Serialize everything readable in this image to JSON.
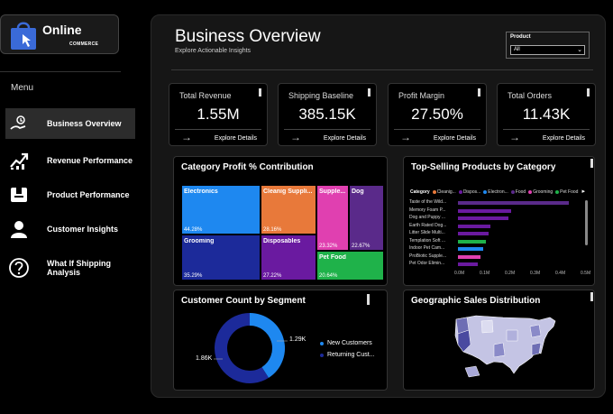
{
  "brand": {
    "title": "Online",
    "subtitle": "COMMERCE"
  },
  "sidebar": {
    "menu_label": "Menu",
    "items": [
      {
        "label": "Business Overview",
        "icon": "money-hand-icon",
        "active": true
      },
      {
        "label": "Revenue Performance",
        "icon": "trend-up-icon",
        "active": false
      },
      {
        "label": "Product Performance",
        "icon": "box-icon",
        "active": false
      },
      {
        "label": "Customer Insights",
        "icon": "user-icon",
        "active": false
      },
      {
        "label": "What If Shipping Analysis",
        "icon": "question-icon",
        "active": false
      }
    ]
  },
  "header": {
    "title": "Business Overview",
    "subtitle": "Explore Actionable Insights"
  },
  "filter": {
    "label": "Product",
    "value": "All"
  },
  "kpis": [
    {
      "title": "Total Revenue",
      "value": "1.55M",
      "link": "Explore Details"
    },
    {
      "title": "Shipping Baseline",
      "value": "385.15K",
      "link": "Explore Details"
    },
    {
      "title": "Profit Margin",
      "value": "27.50%",
      "link": "Explore Details"
    },
    {
      "title": "Total Orders",
      "value": "11.43K",
      "link": "Explore Details"
    }
  ],
  "cards": {
    "treemap_title": "Category Profit % Contribution",
    "bars_title": "Top-Selling Products by Category",
    "donut_title": "Customer Count by Segment",
    "map_title": "Geographic Sales Distribution"
  },
  "chart_data": [
    {
      "type": "treemap",
      "title": "Category Profit % Contribution",
      "items": [
        {
          "name": "Electronics",
          "value_label": "44.28%",
          "color": "#1e88f0"
        },
        {
          "name": "Cleanig Suppli...",
          "value_label": "28.16%",
          "color": "#e8793a"
        },
        {
          "name": "Supple...",
          "value_label": "23.32%",
          "color": "#e040b0"
        },
        {
          "name": "Dog",
          "value_label": "22.67%",
          "color": "#5a2a8a"
        },
        {
          "name": "Grooming",
          "value_label": "35.29%",
          "color": "#1c2a9a"
        },
        {
          "name": "Disposables",
          "value_label": "27.22%",
          "color": "#6a1aa0"
        },
        {
          "name": "Pet Food",
          "value_label": "20.64%",
          "color": "#1fb24a"
        }
      ]
    },
    {
      "type": "bar",
      "title": "Top-Selling Products by Category",
      "legend_title": "Category",
      "legend": [
        {
          "name": "Cleanig...",
          "color": "#e8793a"
        },
        {
          "name": "Dispos...",
          "color": "#6a1aa0"
        },
        {
          "name": "Electron...",
          "color": "#1e88f0"
        },
        {
          "name": "Food",
          "color": "#5a2a8a"
        },
        {
          "name": "Grooming",
          "color": "#e040b0"
        },
        {
          "name": "Pet Food",
          "color": "#1fb24a"
        }
      ],
      "categories": [
        "Taste of the Wild...",
        "Memory Foam P...",
        "Dog and Puppy ...",
        "Earth Rated Dog...",
        "Litter Slide Multi...",
        "Templation Soft ...",
        "Indoor Pet Cam...",
        "ProBiotic Supple...",
        "Pet Odor Elimin..."
      ],
      "values": [
        0.44,
        0.21,
        0.2,
        0.13,
        0.12,
        0.11,
        0.1,
        0.09,
        0.08
      ],
      "colors": [
        "#5a2a8a",
        "#6a1aa0",
        "#6a1aa0",
        "#6a1aa0",
        "#6a1aa0",
        "#1fb24a",
        "#1e88f0",
        "#e040b0",
        "#6a1aa0"
      ],
      "xticks": [
        "0.0M",
        "0.1M",
        "0.2M",
        "0.3M",
        "0.4M",
        "0.5M"
      ],
      "xlim": [
        0,
        0.5
      ]
    },
    {
      "type": "pie",
      "title": "Customer Count by Segment",
      "series": [
        {
          "name": "New Customers",
          "value": 1290,
          "label": "1.29K",
          "color": "#1e88f0"
        },
        {
          "name": "Returning Cust...",
          "value": 1860,
          "label": "1.86K",
          "color": "#1c2a9a"
        }
      ]
    }
  ]
}
